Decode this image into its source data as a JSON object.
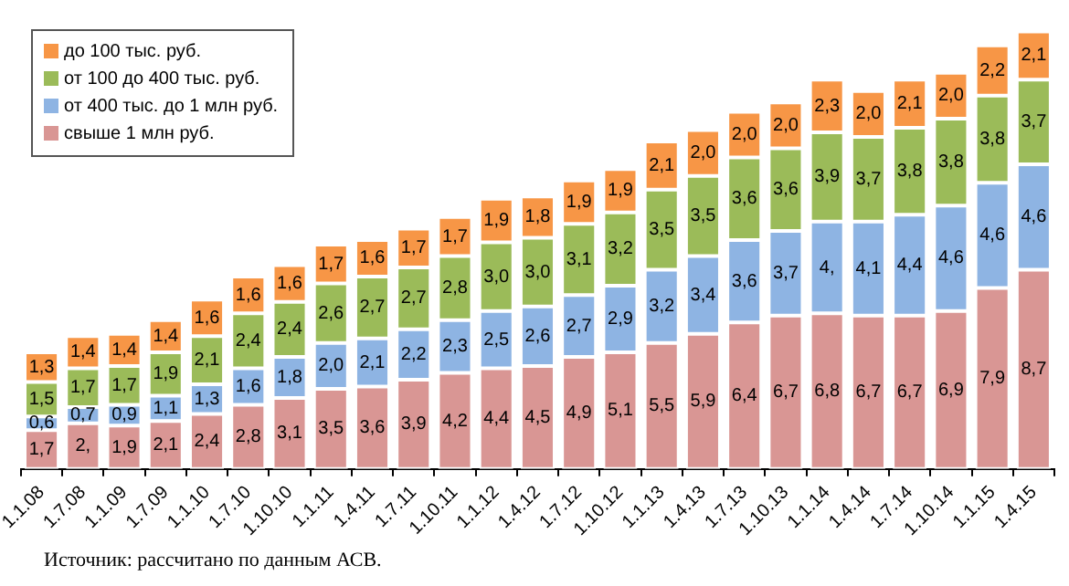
{
  "chart_data": {
    "type": "bar",
    "stacked": true,
    "legend": "top left",
    "grid": false,
    "tick_labels": "x",
    "categories": [
      "1.1.08",
      "1.7.08",
      "1.1.09",
      "1.7.09",
      "1.1.10",
      "1.7.10",
      "1.10.10",
      "1.1.11",
      "1.4.11",
      "1.7.11",
      "1.10.11",
      "1.1.12",
      "1.4.12",
      "1.7.12",
      "1.10.12",
      "1.1.13",
      "1.4.13",
      "1.7.13",
      "1.10.13",
      "1.1.14",
      "1.4.14",
      "1.7.14",
      "1.10.14",
      "1.1.15",
      "1.4.15"
    ],
    "series": [
      {
        "name": "свыше 1 млн руб.",
        "color": "#d99694",
        "values": [
          1.7,
          2,
          1.9,
          2.1,
          2.4,
          2.8,
          3.1,
          3.5,
          3.6,
          3.9,
          4.2,
          4.4,
          4.5,
          4.9,
          5.1,
          5.5,
          5.9,
          6.4,
          6.7,
          6.8,
          6.7,
          6.7,
          6.9,
          7.9,
          8.7
        ],
        "value_labels": [
          "1,7",
          "2,",
          "1,9",
          "2,1",
          "2,4",
          "2,8",
          "3,1",
          "3,5",
          "3,6",
          "3,9",
          "4,2",
          "4,4",
          "4,5",
          "4,9",
          "5,1",
          "5,5",
          "5,9",
          "6,4",
          "6,7",
          "6,8",
          "6,7",
          "6,7",
          "6,9",
          "7,9",
          "8,7"
        ]
      },
      {
        "name": "от 400 тыс. до 1 млн руб.",
        "color": "#8eb4e3",
        "values": [
          0.6,
          0.7,
          0.9,
          1.1,
          1.3,
          1.6,
          1.8,
          2.0,
          2.1,
          2.2,
          2.3,
          2.5,
          2.6,
          2.7,
          2.9,
          3.2,
          3.4,
          3.6,
          3.7,
          4,
          4.1,
          4.4,
          4.6,
          4.6,
          4.6
        ],
        "value_labels": [
          "0,6",
          "0,7",
          "0,9",
          "1,1",
          "1,3",
          "1,6",
          "1,8",
          "2,0",
          "2,1",
          "2,2",
          "2,3",
          "2,5",
          "2,6",
          "2,7",
          "2,9",
          "3,2",
          "3,4",
          "3,6",
          "3,7",
          "4,",
          "4,1",
          "4,4",
          "4,6",
          "4,6",
          "4,6"
        ]
      },
      {
        "name": "от 100 до 400 тыс. руб.",
        "color": "#9bbb59",
        "values": [
          1.5,
          1.7,
          1.7,
          1.9,
          2.1,
          2.4,
          2.4,
          2.6,
          2.7,
          2.7,
          2.8,
          3.0,
          3.0,
          3.1,
          3.2,
          3.5,
          3.5,
          3.6,
          3.6,
          3.9,
          3.7,
          3.8,
          3.8,
          3.8,
          3.7
        ],
        "value_labels": [
          "1,5",
          "1,7",
          "1,7",
          "1,9",
          "2,1",
          "2,4",
          "2,4",
          "2,6",
          "2,7",
          "2,7",
          "2,8",
          "3,0",
          "3,0",
          "3,1",
          "3,2",
          "3,5",
          "3,5",
          "3,6",
          "3,6",
          "3,9",
          "3,7",
          "3,8",
          "3,8",
          "3,8",
          "3,7"
        ]
      },
      {
        "name": "до 100 тыс. руб.",
        "color": "#f79646",
        "values": [
          1.3,
          1.4,
          1.4,
          1.4,
          1.6,
          1.6,
          1.6,
          1.7,
          1.6,
          1.7,
          1.7,
          1.9,
          1.8,
          1.9,
          1.9,
          2.1,
          2.0,
          2.0,
          2.0,
          2.3,
          2.0,
          2.1,
          2.0,
          2.2,
          2.1
        ],
        "value_labels": [
          "1,3",
          "1,4",
          "1,4",
          "1,4",
          "1,6",
          "1,6",
          "1,6",
          "1,7",
          "1,6",
          "1,7",
          "1,7",
          "1,9",
          "1,8",
          "1,9",
          "1,9",
          "2,1",
          "2,0",
          "2,0",
          "2,0",
          "2,3",
          "2,0",
          "2,1",
          "2,0",
          "2,2",
          "2,1"
        ]
      }
    ],
    "annotations": [
      "Источник: рассчитано по данным АСВ."
    ]
  }
}
